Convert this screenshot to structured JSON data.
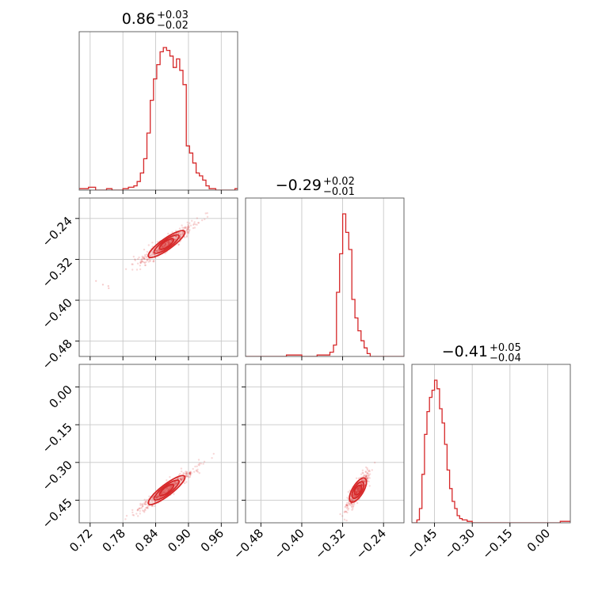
{
  "chart_data": {
    "type": "corner",
    "series_color": "#d62728",
    "grid": true,
    "parameters": [
      {
        "index": 0,
        "range": [
          0.7,
          0.99
        ],
        "ticks": [
          "0.72",
          "0.78",
          "0.84",
          "0.90",
          "0.96"
        ],
        "tick_values": [
          0.72,
          0.78,
          0.84,
          0.9,
          0.96
        ],
        "median": 0.86
      },
      {
        "index": 1,
        "range": [
          -0.51,
          -0.2
        ],
        "ticks": [
          "−0.48",
          "−0.40",
          "−0.32",
          "−0.24"
        ],
        "tick_values": [
          -0.48,
          -0.4,
          -0.32,
          -0.24
        ],
        "median": -0.29
      },
      {
        "index": 2,
        "range": [
          -0.54,
          0.09
        ],
        "ticks": [
          "−0.45",
          "−0.30",
          "−0.15",
          "0.00"
        ],
        "tick_values": [
          -0.45,
          -0.3,
          -0.15,
          0.0
        ],
        "median": -0.41
      }
    ],
    "titles": [
      {
        "main": "0.86",
        "plus": "+0.03",
        "minus": "−0.02"
      },
      {
        "main": "−0.29",
        "plus": "+0.02",
        "minus": "−0.01"
      },
      {
        "main": "−0.41",
        "plus": "+0.05",
        "minus": "−0.04"
      }
    ],
    "histograms": [
      {
        "param": 0,
        "bins": [
          [
            0.7,
            0.01
          ],
          [
            0.717,
            0.02
          ],
          [
            0.73,
            0.0
          ],
          [
            0.75,
            0.01
          ],
          [
            0.76,
            0.0
          ],
          [
            0.78,
            0.01
          ],
          [
            0.79,
            0.02
          ],
          [
            0.8,
            0.03
          ],
          [
            0.806,
            0.06
          ],
          [
            0.812,
            0.12
          ],
          [
            0.818,
            0.22
          ],
          [
            0.824,
            0.4
          ],
          [
            0.83,
            0.63
          ],
          [
            0.836,
            0.78
          ],
          [
            0.842,
            0.88
          ],
          [
            0.848,
            0.97
          ],
          [
            0.854,
            1.0
          ],
          [
            0.86,
            0.98
          ],
          [
            0.866,
            0.94
          ],
          [
            0.872,
            0.86
          ],
          [
            0.878,
            0.92
          ],
          [
            0.884,
            0.84
          ],
          [
            0.89,
            0.74
          ],
          [
            0.896,
            0.31
          ],
          [
            0.902,
            0.26
          ],
          [
            0.908,
            0.19
          ],
          [
            0.914,
            0.12
          ],
          [
            0.92,
            0.1
          ],
          [
            0.926,
            0.07
          ],
          [
            0.932,
            0.03
          ],
          [
            0.938,
            0.01
          ],
          [
            0.95,
            0.0
          ],
          [
            0.97,
            0.0
          ],
          [
            0.985,
            0.01
          ]
        ]
      },
      {
        "param": 1,
        "bins": [
          [
            -0.51,
            0.0
          ],
          [
            -0.47,
            0.0
          ],
          [
            -0.43,
            0.01
          ],
          [
            -0.4,
            0.0
          ],
          [
            -0.37,
            0.01
          ],
          [
            -0.345,
            0.03
          ],
          [
            -0.338,
            0.08
          ],
          [
            -0.332,
            0.45
          ],
          [
            -0.326,
            0.72
          ],
          [
            -0.32,
            1.0
          ],
          [
            -0.314,
            0.87
          ],
          [
            -0.308,
            0.75
          ],
          [
            -0.302,
            0.4
          ],
          [
            -0.296,
            0.27
          ],
          [
            -0.29,
            0.18
          ],
          [
            -0.284,
            0.11
          ],
          [
            -0.278,
            0.06
          ],
          [
            -0.272,
            0.02
          ],
          [
            -0.266,
            0.0
          ],
          [
            -0.25,
            0.0
          ],
          [
            -0.22,
            0.0
          ]
        ]
      },
      {
        "param": 2,
        "bins": [
          [
            -0.54,
            0.0
          ],
          [
            -0.52,
            0.02
          ],
          [
            -0.51,
            0.1
          ],
          [
            -0.5,
            0.34
          ],
          [
            -0.49,
            0.62
          ],
          [
            -0.48,
            0.78
          ],
          [
            -0.47,
            0.88
          ],
          [
            -0.46,
            0.93
          ],
          [
            -0.45,
            1.0
          ],
          [
            -0.44,
            0.94
          ],
          [
            -0.43,
            0.8
          ],
          [
            -0.42,
            0.7
          ],
          [
            -0.41,
            0.55
          ],
          [
            -0.4,
            0.37
          ],
          [
            -0.39,
            0.24
          ],
          [
            -0.38,
            0.15
          ],
          [
            -0.37,
            0.1
          ],
          [
            -0.36,
            0.05
          ],
          [
            -0.35,
            0.03
          ],
          [
            -0.34,
            0.02
          ],
          [
            -0.32,
            0.01
          ],
          [
            -0.3,
            0.0
          ],
          [
            -0.2,
            0.0
          ],
          [
            0.05,
            0.01
          ]
        ]
      }
    ],
    "correlations": [
      {
        "x_param": 0,
        "y_param": 1,
        "center": [
          0.86,
          -0.29
        ],
        "direction": [
          0.06,
          0.045
        ],
        "spread": 0.008
      },
      {
        "x_param": 0,
        "y_param": 2,
        "center": [
          0.86,
          -0.41
        ],
        "direction": [
          0.06,
          0.1
        ],
        "spread": 0.01
      },
      {
        "x_param": 1,
        "y_param": 2,
        "center": [
          -0.29,
          -0.41
        ],
        "direction": [
          0.025,
          0.085
        ],
        "spread": 0.01
      }
    ]
  }
}
